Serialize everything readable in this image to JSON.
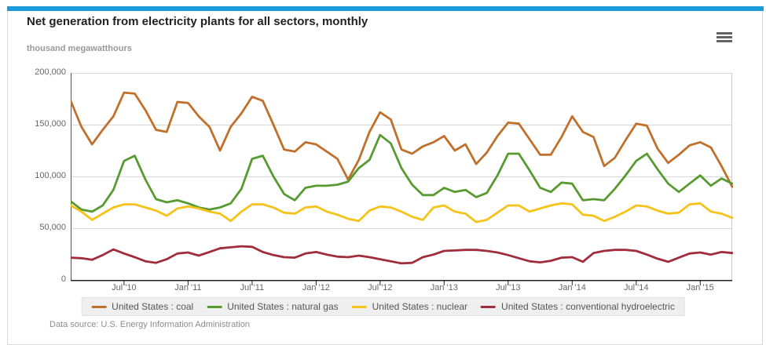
{
  "colors": {
    "accent_bar": "#1b9cd8",
    "card_border": "#dcdcdc",
    "grid_line": "#d8d8d8",
    "axis_line": "#333333",
    "legend_bg": "#efefef"
  },
  "header": {
    "title": "Net generation from electricity plants for all sectors, monthly",
    "menu_icon": "hamburger-menu-icon"
  },
  "chart": {
    "unit_label": "thousand megawatthours"
  },
  "chart_data": {
    "type": "line",
    "title": "Net generation from electricity plants for all sectors, monthly",
    "ylabel": "thousand megawatthours",
    "xlabel": "",
    "ylim": [
      0,
      200000
    ],
    "ytick_values": [
      200000,
      150000,
      100000,
      50000,
      0
    ],
    "ytick_labels": [
      "200,000",
      "150,000",
      "100,000",
      "50,000",
      "0"
    ],
    "grid": "horizontal",
    "legend_position": "bottom",
    "x_interval": "monthly",
    "months": [
      "2010-02",
      "2010-03",
      "2010-04",
      "2010-05",
      "2010-06",
      "2010-07",
      "2010-08",
      "2010-09",
      "2010-10",
      "2010-11",
      "2010-12",
      "2011-01",
      "2011-02",
      "2011-03",
      "2011-04",
      "2011-05",
      "2011-06",
      "2011-07",
      "2011-08",
      "2011-09",
      "2011-10",
      "2011-11",
      "2011-12",
      "2012-01",
      "2012-02",
      "2012-03",
      "2012-04",
      "2012-05",
      "2012-06",
      "2012-07",
      "2012-08",
      "2012-09",
      "2012-10",
      "2012-11",
      "2012-12",
      "2013-01",
      "2013-02",
      "2013-03",
      "2013-04",
      "2013-05",
      "2013-06",
      "2013-07",
      "2013-08",
      "2013-09",
      "2013-10",
      "2013-11",
      "2013-12",
      "2014-01",
      "2014-02",
      "2014-03",
      "2014-04",
      "2014-05",
      "2014-06",
      "2014-07",
      "2014-08",
      "2014-09",
      "2014-10",
      "2014-11",
      "2014-12",
      "2015-01",
      "2015-02",
      "2015-03",
      "2015-04"
    ],
    "xtick_indices": [
      5,
      11,
      17,
      23,
      29,
      35,
      41,
      47,
      53,
      59
    ],
    "xtick_labels": [
      "Jul '10",
      "Jan '11",
      "Jul '11",
      "Jan '12",
      "Jul '12",
      "Jan '13",
      "Jul '13",
      "Jan '14",
      "Jul '14",
      "Jan '15"
    ],
    "series": [
      {
        "name": "United States : coal",
        "color": "#c1702c",
        "values": [
          173000,
          148000,
          131000,
          145000,
          158000,
          181000,
          180000,
          164000,
          145000,
          143000,
          172000,
          171000,
          158000,
          148000,
          125000,
          148000,
          161000,
          177000,
          173000,
          150000,
          126000,
          124000,
          133000,
          131000,
          124000,
          117000,
          97000,
          116000,
          143000,
          162000,
          155000,
          126000,
          122000,
          129000,
          133000,
          139000,
          125000,
          131000,
          112000,
          123000,
          139000,
          152000,
          151000,
          136000,
          121000,
          121000,
          138000,
          158000,
          143000,
          138000,
          110000,
          118000,
          135000,
          151000,
          149000,
          127000,
          113000,
          121000,
          130000,
          133000,
          128000,
          110000,
          90000
        ]
      },
      {
        "name": "United States : natural gas",
        "color": "#579b30",
        "values": [
          76000,
          68000,
          66000,
          72000,
          87000,
          115000,
          120000,
          97000,
          78000,
          75000,
          77000,
          74000,
          70000,
          68000,
          70000,
          74000,
          88000,
          117000,
          120000,
          100000,
          83000,
          77000,
          89000,
          91000,
          91000,
          92000,
          95000,
          108000,
          116000,
          140000,
          132000,
          108000,
          92000,
          82000,
          82000,
          89000,
          85000,
          87000,
          80000,
          84000,
          101000,
          122000,
          122000,
          106000,
          89000,
          85000,
          94000,
          93000,
          77000,
          78000,
          77000,
          88000,
          101000,
          115000,
          122000,
          107000,
          93000,
          85000,
          93000,
          101000,
          91000,
          98000,
          93000
        ]
      },
      {
        "name": "United States : nuclear",
        "color": "#f5c31a",
        "values": [
          72000,
          66000,
          58000,
          64000,
          70000,
          73000,
          73000,
          70000,
          67000,
          62000,
          69000,
          71000,
          69000,
          66000,
          64000,
          57000,
          66000,
          73000,
          73000,
          70000,
          65000,
          64000,
          70000,
          71000,
          66000,
          63000,
          59000,
          57000,
          67000,
          71000,
          70000,
          66000,
          61000,
          58000,
          70000,
          72000,
          66000,
          64000,
          56000,
          58000,
          65000,
          72000,
          72000,
          66000,
          69000,
          72000,
          74000,
          73000,
          63000,
          62000,
          57000,
          61000,
          66000,
          72000,
          71000,
          67000,
          64000,
          65000,
          73000,
          74000,
          66000,
          64000,
          60000
        ]
      },
      {
        "name": "United States : conventional hydroelectric",
        "color": "#a02c3c",
        "values": [
          21500,
          21000,
          19500,
          24000,
          29500,
          25500,
          22000,
          18000,
          16500,
          20000,
          25500,
          26500,
          23500,
          27000,
          30500,
          31500,
          32500,
          32000,
          27000,
          24000,
          22000,
          21500,
          25500,
          27000,
          24500,
          22500,
          22000,
          23500,
          22000,
          20000,
          18000,
          16000,
          16500,
          22000,
          24500,
          28000,
          28500,
          29000,
          29000,
          28000,
          26500,
          24000,
          21000,
          18000,
          17000,
          18500,
          21500,
          22000,
          17500,
          26000,
          28000,
          29000,
          29000,
          28000,
          24500,
          20500,
          17500,
          21500,
          25500,
          26500,
          24500,
          27000,
          26000
        ]
      }
    ]
  },
  "legend": {
    "items": [
      {
        "label": "United States : coal"
      },
      {
        "label": "United States : natural gas"
      },
      {
        "label": "United States : nuclear"
      },
      {
        "label": "United States : conventional hydroelectric"
      }
    ]
  },
  "footer": {
    "source": "Data source: U.S. Energy Information Administration"
  }
}
